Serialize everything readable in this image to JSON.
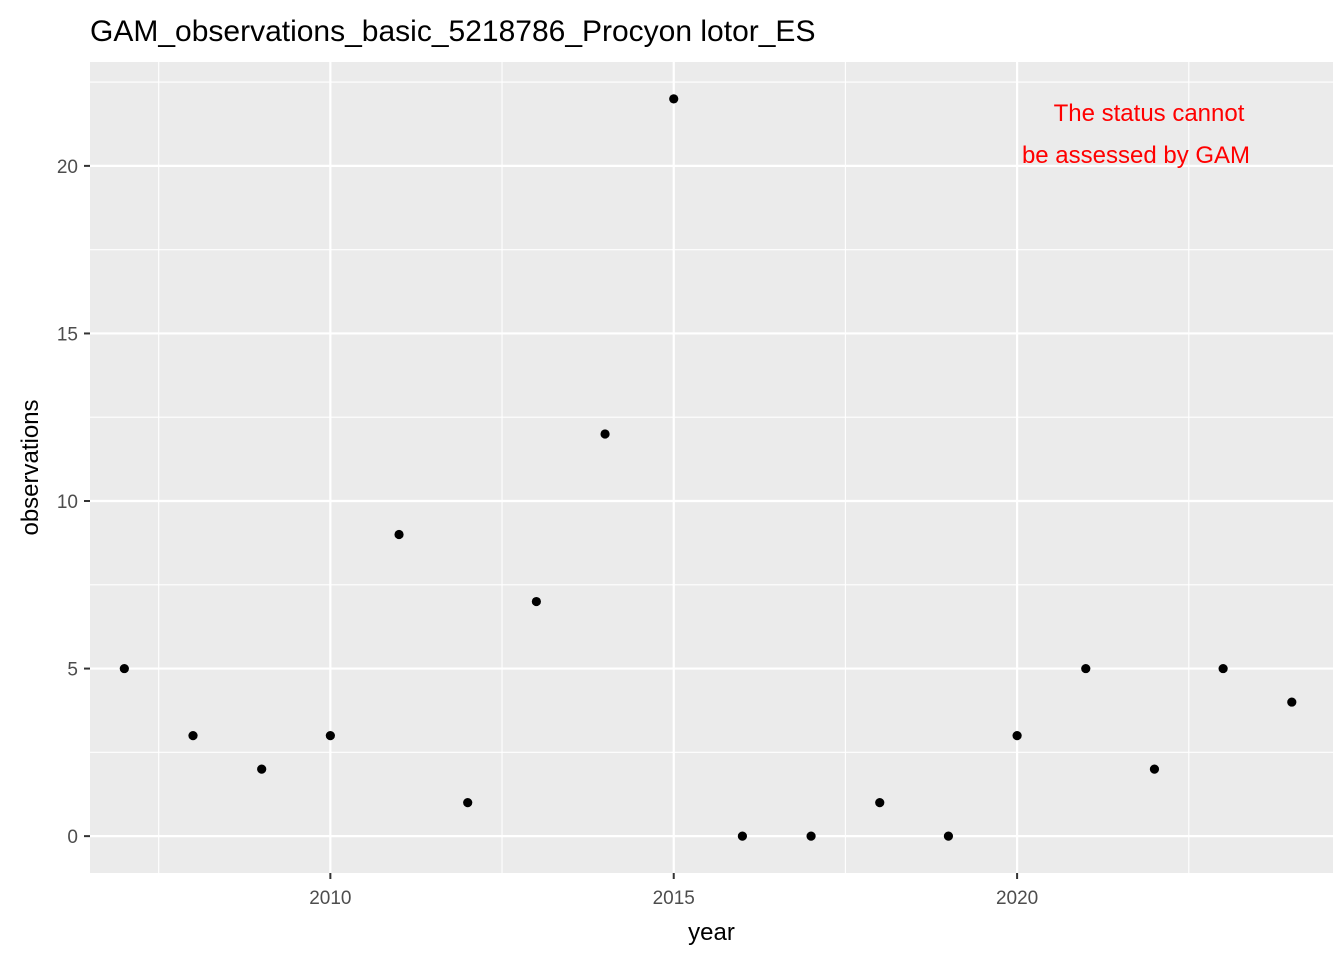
{
  "chart_data": {
    "type": "scatter",
    "title": "GAM_observations_basic_5218786_Procyon lotor_ES",
    "xlabel": "year",
    "ylabel": "observations",
    "xlim": [
      2006.5,
      2024.6
    ],
    "ylim": [
      -1.1,
      23.1
    ],
    "x_ticks": [
      2010,
      2015,
      2020
    ],
    "x_minor_ticks": [
      2007.5,
      2012.5,
      2017.5,
      2022.5
    ],
    "y_ticks": [
      0,
      5,
      10,
      15,
      20
    ],
    "y_minor_ticks": [
      2.5,
      7.5,
      12.5,
      17.5,
      22.5
    ],
    "x_tick_labels": [
      "2010",
      "2015",
      "2020"
    ],
    "y_tick_labels": [
      "0",
      "5",
      "10",
      "15",
      "20"
    ],
    "x": [
      2007,
      2008,
      2009,
      2010,
      2011,
      2012,
      2013,
      2014,
      2015,
      2016,
      2017,
      2018,
      2019,
      2020,
      2021,
      2022,
      2023,
      2024
    ],
    "y": [
      5,
      3,
      2,
      3,
      9,
      1,
      7,
      12,
      22,
      0,
      0,
      1,
      0,
      3,
      5,
      2,
      5,
      4
    ],
    "grid": true,
    "legend": "none",
    "annotation": {
      "lines": [
        "The status cannot",
        "be assessed by GAM"
      ],
      "color": "#ff0000",
      "placement": "top-right"
    },
    "colors": {
      "panel_background": "#ebebeb",
      "grid_major": "#ffffff",
      "point": "#000000",
      "tick_label": "#4d4d4d"
    }
  }
}
